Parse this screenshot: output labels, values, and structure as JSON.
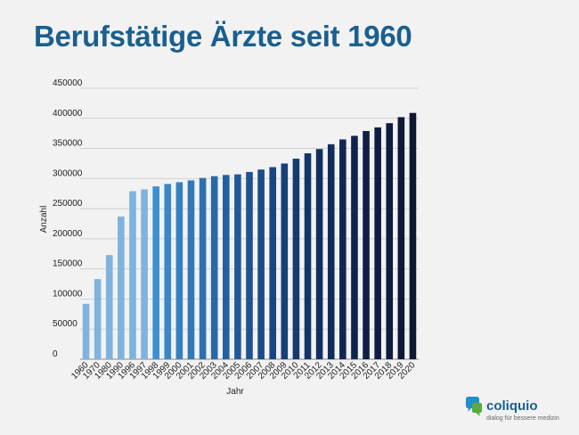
{
  "chart_data": {
    "type": "bar",
    "title": "Berufstätige Ärzte seit 1960",
    "xlabel": "Jahr",
    "ylabel": "Anzahl",
    "ylim": [
      0,
      450000
    ],
    "yticks": [
      0,
      50000,
      100000,
      150000,
      200000,
      250000,
      300000,
      350000,
      400000,
      450000
    ],
    "grid": true,
    "legend": "none",
    "categories": [
      "1960",
      "1970",
      "1980",
      "1990",
      "1996",
      "1997",
      "1998",
      "1999",
      "2000",
      "2001",
      "2002",
      "2003",
      "2004",
      "2005",
      "2006",
      "2007",
      "2008",
      "2009",
      "2010",
      "2011",
      "2012",
      "2013",
      "2014",
      "2015",
      "2016",
      "2017",
      "2018",
      "2019",
      "2020"
    ],
    "values": [
      92000,
      133000,
      173000,
      237000,
      279000,
      282000,
      287000,
      291000,
      294000,
      297000,
      301000,
      304000,
      306000,
      307000,
      311000,
      315000,
      319000,
      325000,
      333000,
      342000,
      349000,
      357000,
      365000,
      371000,
      379000,
      385000,
      392000,
      402000,
      409000
    ],
    "colors": [
      "#7fb3de",
      "#7fb3de",
      "#7fb3de",
      "#7fb3de",
      "#7fb3de",
      "#7fb3de",
      "#3c8fd0",
      "#3887c8",
      "#3480c0",
      "#3078b8",
      "#2c70b0",
      "#2868a8",
      "#2460a0",
      "#215998",
      "#1e5290",
      "#1b4b88",
      "#194580",
      "#173f78",
      "#153970",
      "#133468",
      "#122f61",
      "#112b5a",
      "#102753",
      "#0f234c",
      "#0e2046",
      "#0e1d41",
      "#0e1b3c",
      "#0e1937",
      "#0e1833"
    ]
  },
  "logo": {
    "name": "coliquio",
    "tagline": "dialog für bessere medizin",
    "colors": [
      "#1f8fd0",
      "#5aab3c"
    ]
  }
}
